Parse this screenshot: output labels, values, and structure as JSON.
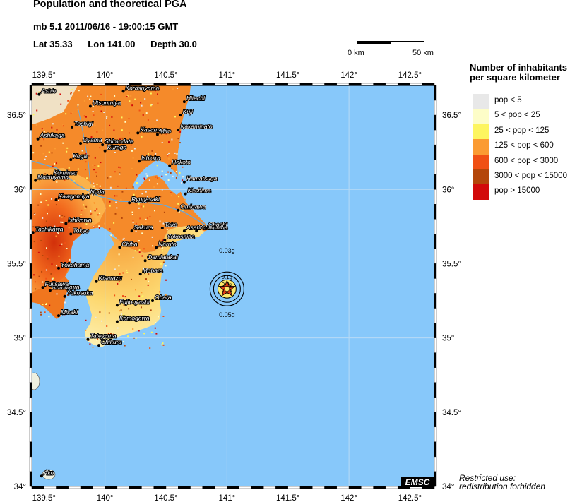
{
  "header": {
    "title": "Population and theoretical PGA",
    "event": "mb 5.1  2011/06/16 - 19:00:15 GMT",
    "lat": "Lat 35.33",
    "lon": "Lon 141.00",
    "depth": "Depth  30.0"
  },
  "scale": {
    "left_label": "0 km",
    "right_label": "50 km"
  },
  "map": {
    "lon_range": [
      139.4,
      142.7
    ],
    "lat_range": [
      34.0,
      36.7
    ],
    "lon_ticks": [
      "139.5°",
      "140°",
      "140.5°",
      "141°",
      "141.5°",
      "142°",
      "142.5°"
    ],
    "lat_ticks": [
      "34°",
      "34.5°",
      "35°",
      "35.5°",
      "36°",
      "36.5°"
    ],
    "epicenter": {
      "lat": 35.33,
      "lon": 141.0
    },
    "pga_labels": [
      "0.1g",
      "0.2g",
      "0.03g",
      "0.05g"
    ],
    "colors": {
      "sea": "#87c8fa",
      "land_base": "#fde38a",
      "grid": "#b8daf5"
    },
    "cities": [
      {
        "name": "Ashio",
        "lat": 36.64,
        "lon": 139.46
      },
      {
        "name": "Karasuyama",
        "lat": 36.66,
        "lon": 140.15
      },
      {
        "name": "Hitachi",
        "lat": 36.59,
        "lon": 140.65
      },
      {
        "name": "Utsunmiya",
        "lat": 36.56,
        "lon": 139.88
      },
      {
        "name": "Kuji",
        "lat": 36.5,
        "lon": 140.62
      },
      {
        "name": "Tochigi",
        "lat": 36.42,
        "lon": 139.73
      },
      {
        "name": "Kasama",
        "lat": 36.38,
        "lon": 140.27
      },
      {
        "name": "Mito",
        "lat": 36.37,
        "lon": 140.43
      },
      {
        "name": "Nakaminato",
        "lat": 36.4,
        "lon": 140.6
      },
      {
        "name": "Ashikaga",
        "lat": 36.34,
        "lon": 139.45
      },
      {
        "name": "Oyama",
        "lat": 36.31,
        "lon": 139.8
      },
      {
        "name": "Shimodate",
        "lat": 36.3,
        "lon": 139.98
      },
      {
        "name": "Kurogo",
        "lat": 36.26,
        "lon": 140.0
      },
      {
        "name": "Koga",
        "lat": 36.2,
        "lon": 139.72
      },
      {
        "name": "Ishioka",
        "lat": 36.19,
        "lon": 140.28
      },
      {
        "name": "Hokota",
        "lat": 36.16,
        "lon": 140.53
      },
      {
        "name": "Kominsu",
        "lat": 36.09,
        "lon": 139.56
      },
      {
        "name": "Matsuyama",
        "lat": 36.06,
        "lon": 139.43
      },
      {
        "name": "Hamatsuga",
        "lat": 36.05,
        "lon": 140.65
      },
      {
        "name": "Kashima",
        "lat": 35.97,
        "lon": 140.66
      },
      {
        "name": "Noda",
        "lat": 35.96,
        "lon": 139.86
      },
      {
        "name": "Kawgomiya",
        "lat": 35.93,
        "lon": 139.6
      },
      {
        "name": "Ryugasaki",
        "lat": 35.91,
        "lon": 140.2
      },
      {
        "name": "Omigawa",
        "lat": 35.86,
        "lon": 140.6
      },
      {
        "name": "Ishikawa",
        "lat": 35.77,
        "lon": 139.68
      },
      {
        "name": "Tachikawa",
        "lat": 35.71,
        "lon": 139.41
      },
      {
        "name": "Tokyo",
        "lat": 35.7,
        "lon": 139.72
      },
      {
        "name": "Sakura",
        "lat": 35.72,
        "lon": 140.22
      },
      {
        "name": "Tako",
        "lat": 35.74,
        "lon": 140.47
      },
      {
        "name": "Asahi",
        "lat": 35.72,
        "lon": 140.65
      },
      {
        "name": "Yokaichiba",
        "lat": 35.72,
        "lon": 140.75
      },
      {
        "name": "Choshi",
        "lat": 35.74,
        "lon": 140.83
      },
      {
        "name": "Yokoshiba",
        "lat": 35.66,
        "lon": 140.49
      },
      {
        "name": "Chiba",
        "lat": 35.61,
        "lon": 140.12
      },
      {
        "name": "Naruto",
        "lat": 35.61,
        "lon": 140.42
      },
      {
        "name": "Oamiatakai",
        "lat": 35.52,
        "lon": 140.33
      },
      {
        "name": "Yokohama",
        "lat": 35.47,
        "lon": 139.62
      },
      {
        "name": "Mobara",
        "lat": 35.43,
        "lon": 140.29
      },
      {
        "name": "Kisarazu",
        "lat": 35.38,
        "lon": 139.93
      },
      {
        "name": "Kamakura",
        "lat": 35.32,
        "lon": 139.55
      },
      {
        "name": "Fujisawa",
        "lat": 35.34,
        "lon": 139.49
      },
      {
        "name": "Yokosuka",
        "lat": 35.28,
        "lon": 139.67
      },
      {
        "name": "Fujiooyashi",
        "lat": 35.22,
        "lon": 140.1
      },
      {
        "name": "Ohara",
        "lat": 35.25,
        "lon": 140.39
      },
      {
        "name": "Misaki",
        "lat": 35.15,
        "lon": 139.62
      },
      {
        "name": "Kamogawa",
        "lat": 35.11,
        "lon": 140.1
      },
      {
        "name": "Tateyama",
        "lat": 34.99,
        "lon": 139.86
      },
      {
        "name": "Chikura",
        "lat": 34.95,
        "lon": 139.95
      },
      {
        "name": "Ako",
        "lat": 34.07,
        "lon": 139.48
      }
    ]
  },
  "legend": {
    "title_line1": "Number of inhabitants",
    "title_line2": "per square kilometer",
    "items": [
      {
        "label": "pop < 5",
        "color": "#e8e8e8"
      },
      {
        "label": "5 < pop < 25",
        "color": "#fdfdc8"
      },
      {
        "label": "25 < pop < 125",
        "color": "#fdf560"
      },
      {
        "label": "125 < pop < 600",
        "color": "#fb9b32"
      },
      {
        "label": "600 < pop < 3000",
        "color": "#f05014"
      },
      {
        "label": "3000 < pop < 15000",
        "color": "#b4460a"
      },
      {
        "label": "pop > 15000",
        "color": "#d20a0a"
      }
    ]
  },
  "footer": {
    "restricted_line1": "Restricted use:",
    "restricted_line2": "redistribution forbidden",
    "logo": "EMSC"
  }
}
